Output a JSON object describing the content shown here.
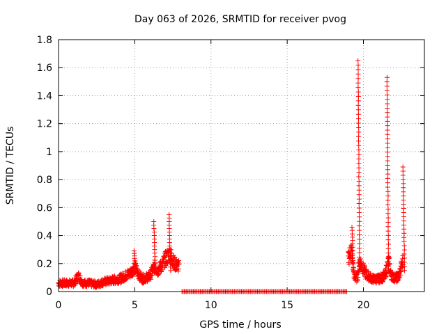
{
  "chart_data": {
    "type": "scatter",
    "title": "Day 063 of 2026, SRMTID for receiver pvog",
    "xlabel": "GPS time / hours",
    "ylabel": "SRMTID / TECUs",
    "xlim": [
      0,
      24
    ],
    "ylim": [
      0,
      1.8
    ],
    "x_ticks": [
      0,
      5,
      10,
      15,
      20
    ],
    "y_ticks": [
      0,
      0.2,
      0.4,
      0.6,
      0.8,
      1,
      1.2,
      1.4,
      1.6,
      1.8
    ],
    "x_tick_labels": [
      "0",
      "5",
      "10",
      "15",
      "20"
    ],
    "y_tick_labels": [
      "0",
      "0.2",
      "0.4",
      "0.6",
      "0.8",
      "1",
      "1.2",
      "1.4",
      "1.6",
      "1.8"
    ],
    "grid": true,
    "marker": "+",
    "marker_color": "#ff0000",
    "series": [
      {
        "name": "SRMTID",
        "segments": [
          {
            "points": [
              [
                0.0,
                0.06
              ],
              [
                0.5,
                0.06
              ],
              [
                1.0,
                0.06
              ],
              [
                1.3,
                0.11
              ],
              [
                1.6,
                0.06
              ],
              [
                2.0,
                0.06
              ],
              [
                2.5,
                0.05
              ],
              [
                3.0,
                0.07
              ],
              [
                3.5,
                0.08
              ],
              [
                4.0,
                0.09
              ],
              [
                4.5,
                0.12
              ],
              [
                4.8,
                0.14
              ],
              [
                5.0,
                0.18
              ],
              [
                5.2,
                0.13
              ],
              [
                5.5,
                0.09
              ],
              [
                6.0,
                0.11
              ],
              [
                6.3,
                0.18
              ],
              [
                6.5,
                0.15
              ],
              [
                6.8,
                0.19
              ],
              [
                7.0,
                0.23
              ],
              [
                7.3,
                0.27
              ],
              [
                7.6,
                0.2
              ],
              [
                7.9,
                0.18
              ]
            ]
          },
          {
            "points": [
              [
                8.1,
                0.0
              ],
              [
                10.0,
                0.0
              ],
              [
                12.0,
                0.0
              ],
              [
                14.0,
                0.0
              ],
              [
                16.0,
                0.0
              ],
              [
                17.5,
                0.0
              ],
              [
                18.9,
                0.0
              ]
            ]
          },
          {
            "points": [
              [
                19.0,
                0.23
              ],
              [
                19.2,
                0.3
              ],
              [
                19.4,
                0.1
              ],
              [
                19.6,
                0.1
              ],
              [
                19.75,
                0.22
              ],
              [
                19.95,
                0.17
              ],
              [
                20.2,
                0.12
              ],
              [
                20.6,
                0.09
              ],
              [
                21.0,
                0.09
              ],
              [
                21.4,
                0.11
              ],
              [
                21.65,
                0.22
              ],
              [
                21.8,
                0.12
              ],
              [
                22.0,
                0.1
              ],
              [
                22.3,
                0.1
              ],
              [
                22.6,
                0.22
              ]
            ]
          }
        ],
        "spikes": [
          {
            "x": 6.3,
            "peak": 0.5
          },
          {
            "x": 7.3,
            "peak": 0.55
          },
          {
            "x": 5.0,
            "peak": 0.29
          },
          {
            "x": 19.3,
            "peak": 0.46
          },
          {
            "x": 19.7,
            "peak": 1.65
          },
          {
            "x": 21.6,
            "peak": 1.53
          },
          {
            "x": 22.65,
            "peak": 0.89
          }
        ]
      }
    ]
  }
}
